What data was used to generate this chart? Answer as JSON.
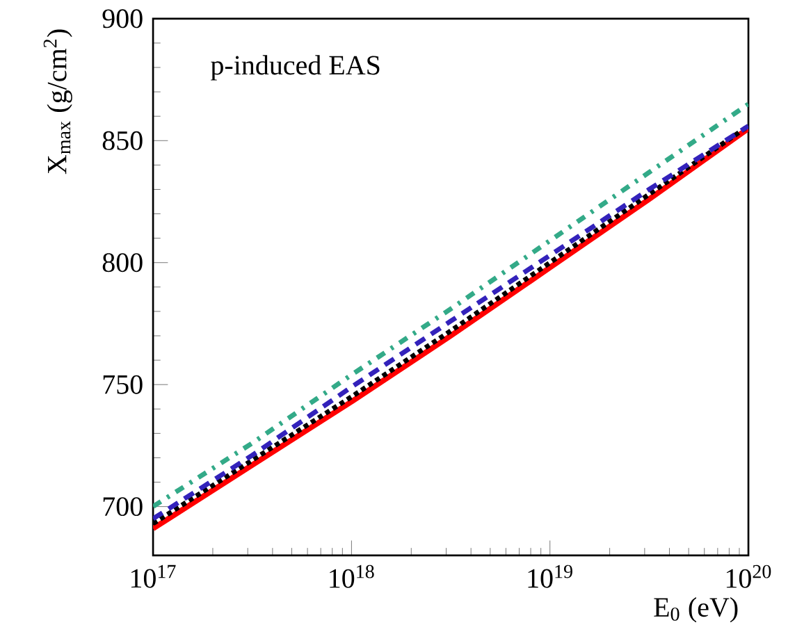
{
  "chart_data": {
    "type": "line",
    "xlabel": "E$_{0}$ (eV)",
    "ylabel": "X$_{max}$ (g/cm$^{2}$)",
    "annotations": [
      "p-induced EAS"
    ],
    "log": "x",
    "xlim": [
      1e+17,
      1e+20
    ],
    "ylim": [
      680,
      900
    ],
    "xticks": [
      {
        "value": 1e+17,
        "label": "10$^{17}$"
      },
      {
        "value": 1e+18,
        "label": "10$^{18}$"
      },
      {
        "value": 1e+19,
        "label": "10$^{19}$"
      },
      {
        "value": 1e+20,
        "label": "10$^{20}$"
      }
    ],
    "yticks": [
      700,
      750,
      800,
      850,
      900
    ],
    "marker": "none",
    "x": [
      1e+17,
      3.16e+17,
      1e+18,
      3.16e+18,
      1e+19,
      3.16e+19,
      1e+20
    ],
    "series": [
      {
        "color": "#ff0000",
        "line_style": "solid",
        "values": [
          691,
          717,
          743,
          770,
          798,
          826,
          855
        ]
      },
      {
        "color": "#000000",
        "line_style": "dotted",
        "values": [
          693,
          719,
          745,
          772,
          800,
          828,
          856
        ]
      },
      {
        "color": "#3322bb",
        "line_style": "dashed",
        "values": [
          695,
          721,
          749,
          776,
          803,
          830,
          856
        ]
      },
      {
        "color": "#33aa88",
        "line_style": "dashdotted",
        "values": [
          700,
          726,
          754,
          781,
          809,
          837,
          865
        ]
      }
    ]
  }
}
